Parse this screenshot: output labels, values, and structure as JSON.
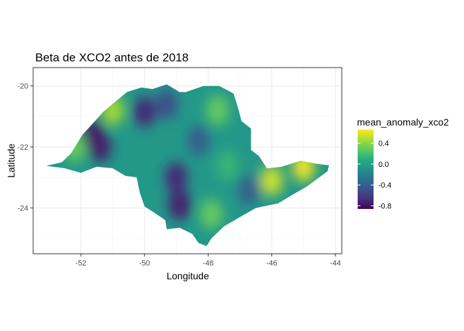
{
  "chart_data": {
    "type": "heatmap",
    "title": "Beta de XCO2 antes de 2018",
    "xlabel": "Longitude",
    "ylabel": "Latitude",
    "xlim": [
      -53.5,
      -43.8
    ],
    "ylim": [
      -25.5,
      -19.4
    ],
    "x_ticks": [
      -52,
      -50,
      -48,
      -46,
      -44
    ],
    "y_ticks": [
      -20,
      -22,
      -24
    ],
    "x_tick_labels": [
      "-52",
      "-50",
      "-48",
      "-46",
      "-44"
    ],
    "y_tick_labels": [
      "-20",
      "-22",
      "-24"
    ],
    "grid": true,
    "legend": {
      "title": "mean_anomaly_xco2",
      "position": "right",
      "range": [
        -0.86,
        0.66
      ],
      "breaks": [
        0.4,
        0.0,
        -0.4,
        -0.8
      ],
      "break_labels": [
        "0.4",
        "0.0",
        "-0.4",
        "-0.8"
      ]
    },
    "colorscale": "viridis",
    "region_outline": [
      [
        -53.1,
        -22.62
      ],
      [
        -52.6,
        -22.5
      ],
      [
        -52.3,
        -22.2
      ],
      [
        -51.95,
        -21.6
      ],
      [
        -51.6,
        -21.2
      ],
      [
        -51.3,
        -20.85
      ],
      [
        -50.9,
        -20.5
      ],
      [
        -50.55,
        -20.2
      ],
      [
        -50.1,
        -20.05
      ],
      [
        -49.75,
        -20.1
      ],
      [
        -49.3,
        -19.95
      ],
      [
        -48.9,
        -20.2
      ],
      [
        -48.7,
        -20.2
      ],
      [
        -48.15,
        -20.0
      ],
      [
        -47.65,
        -20.0
      ],
      [
        -47.2,
        -20.25
      ],
      [
        -47.05,
        -20.75
      ],
      [
        -46.95,
        -21.15
      ],
      [
        -46.65,
        -21.4
      ],
      [
        -46.65,
        -22.1
      ],
      [
        -46.4,
        -22.3
      ],
      [
        -46.15,
        -22.7
      ],
      [
        -45.7,
        -22.65
      ],
      [
        -45.1,
        -22.45
      ],
      [
        -44.6,
        -22.55
      ],
      [
        -44.2,
        -22.6
      ],
      [
        -44.25,
        -22.8
      ],
      [
        -44.9,
        -23.3
      ],
      [
        -45.4,
        -23.6
      ],
      [
        -45.8,
        -23.85
      ],
      [
        -46.5,
        -24.0
      ],
      [
        -47.0,
        -24.3
      ],
      [
        -47.5,
        -24.6
      ],
      [
        -47.9,
        -25.0
      ],
      [
        -48.05,
        -25.25
      ],
      [
        -48.3,
        -25.15
      ],
      [
        -48.5,
        -24.85
      ],
      [
        -48.9,
        -24.65
      ],
      [
        -49.3,
        -24.7
      ],
      [
        -49.35,
        -24.4
      ],
      [
        -49.7,
        -24.15
      ],
      [
        -50.0,
        -23.95
      ],
      [
        -50.15,
        -23.5
      ],
      [
        -50.25,
        -23.0
      ],
      [
        -50.6,
        -22.95
      ],
      [
        -51.0,
        -22.7
      ],
      [
        -51.5,
        -22.65
      ],
      [
        -52.0,
        -22.85
      ],
      [
        -52.5,
        -22.7
      ],
      [
        -53.1,
        -22.62
      ]
    ],
    "anomaly_features": [
      {
        "lon": -51.6,
        "lat": -21.6,
        "value": -0.8
      },
      {
        "lon": -51.4,
        "lat": -22.0,
        "value": -0.75
      },
      {
        "lon": -50.0,
        "lat": -20.85,
        "value": -0.7
      },
      {
        "lon": -49.3,
        "lat": -20.6,
        "value": -0.5
      },
      {
        "lon": -49.0,
        "lat": -23.0,
        "value": -0.7
      },
      {
        "lon": -48.9,
        "lat": -23.9,
        "value": -0.75
      },
      {
        "lon": -48.3,
        "lat": -21.8,
        "value": -0.4
      },
      {
        "lon": -46.7,
        "lat": -23.4,
        "value": -0.4
      },
      {
        "lon": -51.0,
        "lat": -20.8,
        "value": 0.45
      },
      {
        "lon": -52.2,
        "lat": -22.0,
        "value": 0.3
      },
      {
        "lon": -47.7,
        "lat": -20.8,
        "value": 0.3
      },
      {
        "lon": -46.0,
        "lat": -23.1,
        "value": 0.55
      },
      {
        "lon": -45.0,
        "lat": -22.65,
        "value": 0.62
      },
      {
        "lon": -47.9,
        "lat": -24.2,
        "value": 0.3
      },
      {
        "lon": -47.4,
        "lat": -22.6,
        "value": 0.15
      }
    ]
  }
}
